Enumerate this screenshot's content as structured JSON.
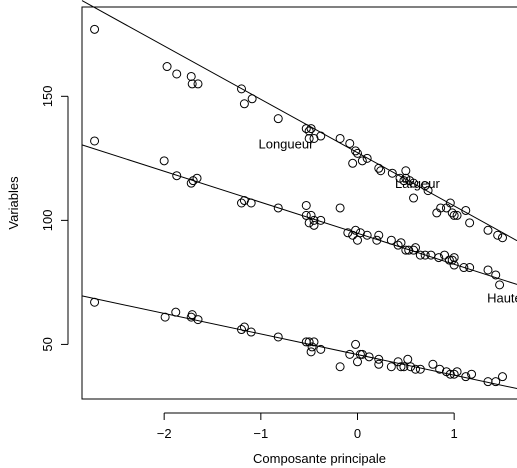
{
  "chart_data": {
    "type": "scatter",
    "title": "",
    "xlabel": "Composante principale",
    "ylabel": "Variables",
    "xlim": [
      -2.85,
      1.65
    ],
    "ylim": [
      28,
      186
    ],
    "x_ticks": [
      {
        "value": -2,
        "label": "−2"
      },
      {
        "value": -1,
        "label": "−1"
      },
      {
        "value": 0,
        "label": "0"
      },
      {
        "value": 1,
        "label": "1"
      }
    ],
    "y_ticks": [
      {
        "value": 50,
        "label": "50"
      },
      {
        "value": 100,
        "label": "100"
      },
      {
        "value": 150,
        "label": "150"
      }
    ],
    "grid": false,
    "legend": "none",
    "series": [
      {
        "name": "Longueur",
        "label_at": [
          -0.74,
          131
        ],
        "line": {
          "intercept": 127.3,
          "slope": -21.5
        },
        "points": [
          [
            -2.72,
            177
          ],
          [
            -1.97,
            162
          ],
          [
            -1.87,
            159
          ],
          [
            -1.72,
            158
          ],
          [
            -1.71,
            155
          ],
          [
            -1.65,
            155
          ],
          [
            -1.2,
            153
          ],
          [
            -1.17,
            147
          ],
          [
            -1.09,
            149
          ],
          [
            -0.82,
            141
          ],
          [
            -0.53,
            137
          ],
          [
            -0.5,
            136
          ],
          [
            -0.48,
            137
          ],
          [
            -0.5,
            133
          ],
          [
            -0.45,
            133
          ],
          [
            -0.38,
            134
          ],
          [
            -0.18,
            133
          ],
          [
            -0.08,
            131
          ],
          [
            -0.02,
            128
          ],
          [
            0.0,
            127
          ],
          [
            -0.05,
            123
          ],
          [
            0.05,
            124
          ],
          [
            0.1,
            125
          ],
          [
            0.22,
            121
          ],
          [
            0.24,
            120
          ],
          [
            0.36,
            119
          ],
          [
            0.44,
            117
          ],
          [
            0.48,
            116
          ],
          [
            0.5,
            117
          ],
          [
            0.5,
            120
          ],
          [
            0.54,
            116
          ],
          [
            0.58,
            115
          ],
          [
            0.58,
            109
          ],
          [
            0.7,
            114
          ],
          [
            0.73,
            112
          ],
          [
            0.82,
            103
          ],
          [
            0.86,
            105
          ],
          [
            0.92,
            105
          ],
          [
            0.96,
            107
          ],
          [
            0.98,
            103
          ],
          [
            1.0,
            102
          ],
          [
            1.03,
            102
          ],
          [
            1.12,
            104
          ],
          [
            1.16,
            99
          ],
          [
            1.35,
            96
          ],
          [
            1.45,
            94
          ],
          [
            1.5,
            93
          ]
        ]
      },
      {
        "name": "Largeur",
        "label_at": [
          0.62,
          115
        ],
        "line": {
          "intercept": 94.8,
          "slope": -12.5
        },
        "points": [
          [
            -2.72,
            132
          ],
          [
            -2.0,
            124
          ],
          [
            -1.87,
            118
          ],
          [
            -1.72,
            115
          ],
          [
            -1.7,
            116
          ],
          [
            -1.66,
            117
          ],
          [
            -1.2,
            107
          ],
          [
            -1.17,
            108
          ],
          [
            -1.1,
            107
          ],
          [
            -0.82,
            105
          ],
          [
            -0.53,
            106
          ],
          [
            -0.53,
            102
          ],
          [
            -0.5,
            99
          ],
          [
            -0.48,
            102
          ],
          [
            -0.45,
            98
          ],
          [
            -0.45,
            100
          ],
          [
            -0.38,
            100
          ],
          [
            -0.18,
            105
          ],
          [
            -0.1,
            95
          ],
          [
            -0.05,
            94
          ],
          [
            -0.02,
            96
          ],
          [
            0.0,
            92
          ],
          [
            0.03,
            95
          ],
          [
            0.1,
            94
          ],
          [
            0.2,
            92
          ],
          [
            0.22,
            94
          ],
          [
            0.35,
            92
          ],
          [
            0.42,
            90
          ],
          [
            0.45,
            91
          ],
          [
            0.5,
            88
          ],
          [
            0.53,
            88
          ],
          [
            0.58,
            88
          ],
          [
            0.6,
            89
          ],
          [
            0.65,
            86
          ],
          [
            0.7,
            86
          ],
          [
            0.76,
            86
          ],
          [
            0.84,
            85
          ],
          [
            0.9,
            86
          ],
          [
            0.95,
            84
          ],
          [
            0.98,
            84
          ],
          [
            1.0,
            82
          ],
          [
            1.0,
            85
          ],
          [
            1.1,
            81
          ],
          [
            1.16,
            81
          ],
          [
            1.35,
            80
          ],
          [
            1.43,
            78
          ],
          [
            1.47,
            74
          ]
        ]
      },
      {
        "name": "Haute",
        "label_at": [
          1.52,
          69
        ],
        "line": {
          "intercept": 45.9,
          "slope": -8.3
        },
        "points": [
          [
            -2.72,
            67
          ],
          [
            -1.99,
            61
          ],
          [
            -1.88,
            63
          ],
          [
            -1.72,
            61
          ],
          [
            -1.71,
            62
          ],
          [
            -1.65,
            60
          ],
          [
            -1.2,
            56
          ],
          [
            -1.17,
            57
          ],
          [
            -1.1,
            55
          ],
          [
            -0.82,
            53
          ],
          [
            -0.53,
            51
          ],
          [
            -0.5,
            51
          ],
          [
            -0.48,
            47
          ],
          [
            -0.45,
            51
          ],
          [
            -0.47,
            49
          ],
          [
            -0.38,
            48
          ],
          [
            -0.18,
            41
          ],
          [
            -0.08,
            46
          ],
          [
            -0.02,
            50
          ],
          [
            0.0,
            43
          ],
          [
            0.03,
            46
          ],
          [
            0.05,
            46
          ],
          [
            0.12,
            45
          ],
          [
            0.22,
            44
          ],
          [
            0.22,
            42
          ],
          [
            0.35,
            41
          ],
          [
            0.42,
            43
          ],
          [
            0.45,
            41
          ],
          [
            0.48,
            41
          ],
          [
            0.52,
            44
          ],
          [
            0.55,
            41
          ],
          [
            0.6,
            40
          ],
          [
            0.65,
            40
          ],
          [
            0.78,
            42
          ],
          [
            0.85,
            40
          ],
          [
            0.92,
            39
          ],
          [
            0.96,
            38
          ],
          [
            1.0,
            38
          ],
          [
            1.03,
            39
          ],
          [
            1.12,
            37
          ],
          [
            1.18,
            38
          ],
          [
            1.35,
            35
          ],
          [
            1.43,
            35
          ],
          [
            1.5,
            37
          ]
        ]
      }
    ]
  }
}
